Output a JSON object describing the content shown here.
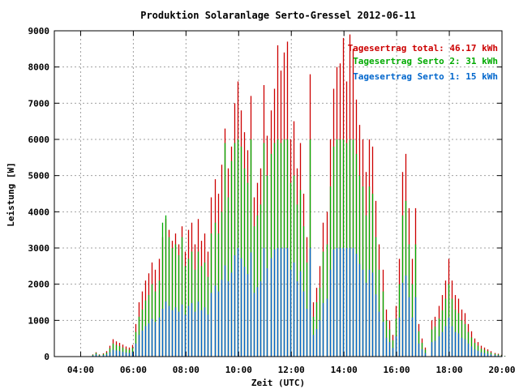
{
  "chart_data": {
    "type": "bar",
    "title": "Produktion Solaranlage Serto-Gressel 2012-06-11",
    "xlabel": "Zeit (UTC)",
    "ylabel": "Leistung [W]",
    "xlim": [
      "03:00",
      "20:00"
    ],
    "ylim": [
      0,
      9000
    ],
    "grid": true,
    "legend_position": "top-right",
    "x_ticks": [
      "04:00",
      "06:00",
      "08:00",
      "10:00",
      "12:00",
      "14:00",
      "16:00",
      "18:00",
      "20:00"
    ],
    "y_ticks": [
      "0",
      "1000",
      "2000",
      "3000",
      "4000",
      "5000",
      "6000",
      "7000",
      "8000",
      "9000"
    ],
    "legend": [
      {
        "label": "Tagesertrag total: 46.17 kWh",
        "color": "#cc0000"
      },
      {
        "label": "Tagesertrag Serto 2: 31 kWh",
        "color": "#00aa00"
      },
      {
        "label": "Tagesertrag Serto 1: 15 kWh",
        "color": "#0066cc"
      }
    ],
    "series": [
      {
        "name": "Tagesertrag total: 46.17 kWh",
        "color": "#cc0000",
        "values": [
          0,
          60,
          120,
          60,
          90,
          150,
          300,
          480,
          420,
          380,
          330,
          280,
          250,
          320,
          900,
          1500,
          1800,
          2100,
          2300,
          2600,
          2400,
          2700,
          3300,
          3800,
          3500,
          3200,
          3400,
          3100,
          3600,
          2900,
          3500,
          3700,
          3100,
          3800,
          3200,
          3400,
          2900,
          4400,
          4900,
          4500,
          5300,
          6300,
          5200,
          5800,
          7000,
          7600,
          6800,
          6200,
          5700,
          7200,
          4400,
          4800,
          5200,
          7500,
          6100,
          6800,
          7400,
          8600,
          7900,
          8400,
          8700,
          6000,
          6500,
          5200,
          5900,
          4500,
          3300,
          7800,
          1500,
          1900,
          2500,
          3700,
          4000,
          6000,
          7400,
          8000,
          8100,
          8800,
          7600,
          8900,
          8500,
          7100,
          6400,
          6000,
          5100,
          6000,
          5800,
          4300,
          3100,
          2400,
          1300,
          1000,
          600,
          1400,
          2700,
          5100,
          5600,
          4100,
          2700,
          4100,
          900,
          500,
          250,
          0,
          1000,
          1100,
          1400,
          1700,
          2100,
          2700,
          2100,
          1700,
          1600,
          1300,
          1200,
          900,
          700,
          500,
          400,
          300,
          250,
          200,
          150,
          100,
          80,
          50,
          20
        ]
      },
      {
        "name": "Tagesertrag Serto 2: 31 kWh",
        "color": "#00aa00",
        "values": [
          0,
          50,
          100,
          50,
          70,
          110,
          230,
          360,
          320,
          290,
          250,
          210,
          190,
          240,
          680,
          1100,
          1300,
          1550,
          1700,
          2000,
          1800,
          2100,
          3700,
          3900,
          3300,
          3000,
          3100,
          2800,
          3300,
          2500,
          2700,
          2900,
          2400,
          2900,
          2500,
          2600,
          2200,
          3400,
          3700,
          3400,
          4000,
          5900,
          4400,
          5400,
          5900,
          6000,
          5800,
          5200,
          4800,
          6000,
          3600,
          3900,
          4200,
          5900,
          5000,
          5600,
          5900,
          6000,
          5900,
          6000,
          6000,
          4800,
          5000,
          4200,
          4600,
          3600,
          2600,
          6000,
          1100,
          1500,
          1900,
          2900,
          3100,
          4700,
          5800,
          6000,
          6000,
          6000,
          5900,
          6000,
          6000,
          5600,
          5000,
          4700,
          3900,
          4700,
          4500,
          3300,
          2400,
          1800,
          1000,
          750,
          450,
          1050,
          2000,
          3900,
          4300,
          3100,
          2000,
          3100,
          700,
          380,
          190,
          0,
          750,
          830,
          1050,
          1280,
          1600,
          2000,
          1600,
          1300,
          1200,
          1000,
          900,
          680,
          530,
          380,
          300,
          220,
          190,
          150,
          110,
          75,
          60,
          38,
          15
        ]
      },
      {
        "name": "Tagesertrag Serto 1: 15 kWh",
        "color": "#0066cc",
        "values": [
          0,
          30,
          60,
          30,
          40,
          60,
          120,
          190,
          170,
          150,
          130,
          110,
          100,
          130,
          360,
          600,
          720,
          840,
          920,
          1040,
          960,
          1080,
          1320,
          1520,
          1400,
          1280,
          1360,
          1240,
          1440,
          1160,
          1400,
          1480,
          1240,
          1520,
          1280,
          1360,
          1160,
          1760,
          1960,
          1800,
          2120,
          2520,
          2080,
          2320,
          2800,
          3000,
          2720,
          2480,
          2280,
          2880,
          1760,
          1920,
          2080,
          3000,
          2440,
          2720,
          2960,
          3000,
          3000,
          3000,
          3000,
          2400,
          2600,
          2080,
          2360,
          1800,
          1320,
          3000,
          600,
          760,
          1000,
          1480,
          1600,
          2400,
          2960,
          3000,
          3000,
          3000,
          3000,
          3000,
          3000,
          2840,
          2560,
          2400,
          2040,
          2400,
          2320,
          1720,
          1240,
          960,
          520,
          400,
          240,
          560,
          1080,
          2040,
          2240,
          1640,
          1080,
          1640,
          360,
          200,
          100,
          0,
          400,
          440,
          560,
          680,
          840,
          1080,
          840,
          680,
          640,
          520,
          480,
          360,
          280,
          200,
          160,
          120,
          100,
          80,
          60,
          40,
          32,
          20,
          8
        ]
      }
    ],
    "x_start": "04:20",
    "x_step_minutes": 7.5
  }
}
